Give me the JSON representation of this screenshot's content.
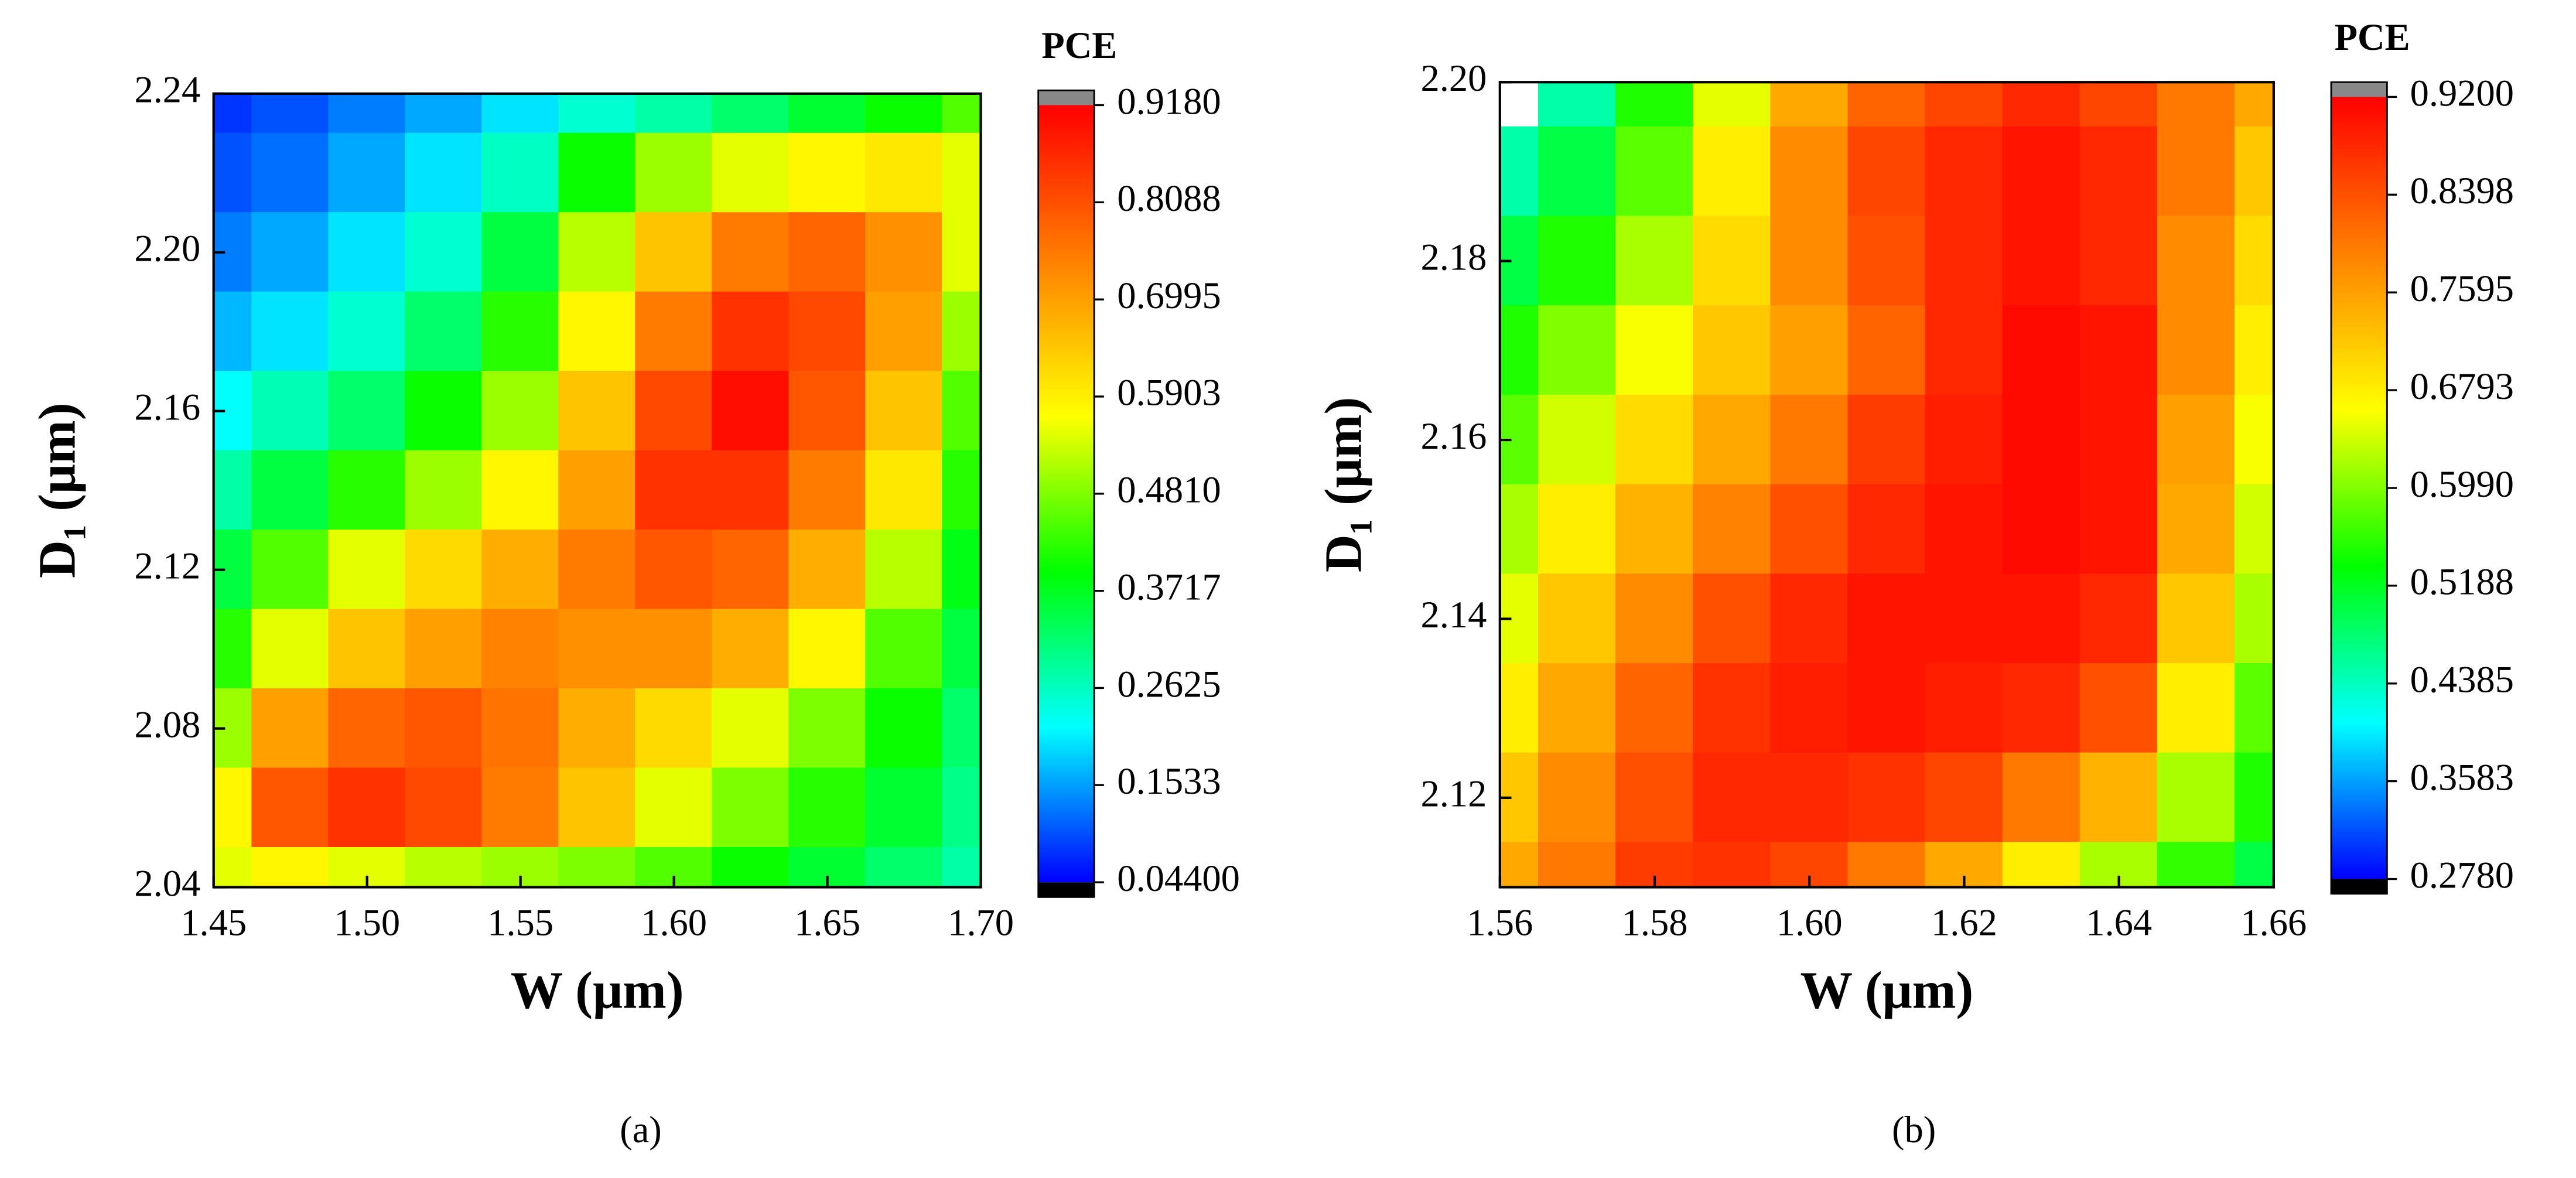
{
  "chart_data": [
    {
      "type": "contour",
      "panel_label": "(a)",
      "x_label": "W (μm)",
      "y_label": "D₁ (μm)",
      "colorbar_title": "PCE",
      "colorscale": [
        "#0000ff",
        "#00ffff",
        "#00ff00",
        "#ffff00",
        "#ff8000",
        "#ff0000"
      ],
      "x": [
        1.45,
        1.475,
        1.5,
        1.525,
        1.55,
        1.575,
        1.6,
        1.625,
        1.65,
        1.675,
        1.7
      ],
      "y": [
        2.24,
        2.22,
        2.2,
        2.18,
        2.16,
        2.14,
        2.12,
        2.1,
        2.08,
        2.06,
        2.04
      ],
      "z": [
        [
          0.08,
          0.1,
          0.13,
          0.16,
          0.2,
          0.25,
          0.28,
          0.32,
          0.36,
          0.4,
          0.45
        ],
        [
          0.1,
          0.12,
          0.16,
          0.2,
          0.26,
          0.4,
          0.5,
          0.55,
          0.58,
          0.6,
          0.55
        ],
        [
          0.13,
          0.16,
          0.2,
          0.25,
          0.35,
          0.52,
          0.65,
          0.75,
          0.78,
          0.72,
          0.55
        ],
        [
          0.17,
          0.2,
          0.25,
          0.32,
          0.42,
          0.58,
          0.75,
          0.85,
          0.82,
          0.7,
          0.5
        ],
        [
          0.22,
          0.27,
          0.32,
          0.4,
          0.5,
          0.65,
          0.82,
          0.9,
          0.8,
          0.65,
          0.45
        ],
        [
          0.28,
          0.35,
          0.42,
          0.5,
          0.58,
          0.7,
          0.85,
          0.85,
          0.75,
          0.6,
          0.42
        ],
        [
          0.35,
          0.45,
          0.55,
          0.62,
          0.68,
          0.75,
          0.8,
          0.78,
          0.68,
          0.52,
          0.38
        ],
        [
          0.42,
          0.55,
          0.65,
          0.7,
          0.74,
          0.72,
          0.72,
          0.68,
          0.58,
          0.45,
          0.35
        ],
        [
          0.5,
          0.7,
          0.78,
          0.8,
          0.76,
          0.68,
          0.62,
          0.55,
          0.48,
          0.4,
          0.32
        ],
        [
          0.58,
          0.8,
          0.85,
          0.82,
          0.75,
          0.65,
          0.55,
          0.48,
          0.42,
          0.36,
          0.3
        ],
        [
          0.55,
          0.58,
          0.55,
          0.52,
          0.5,
          0.48,
          0.45,
          0.4,
          0.36,
          0.32,
          0.28
        ]
      ],
      "xlim": [
        1.45,
        1.7
      ],
      "xticks": [
        1.45,
        {
          "value": 1.5,
          "label": "1.50"
        },
        1.55,
        {
          "value": 1.6,
          "label": "1.60"
        },
        1.65,
        {
          "value": 1.7,
          "label": "1.70"
        }
      ],
      "ylim": [
        2.04,
        2.24
      ],
      "yticks": [
        2.04,
        2.08,
        2.12,
        2.16,
        {
          "value": 2.2,
          "label": "2.20"
        },
        2.24
      ],
      "zlim": [
        0.044,
        0.918
      ],
      "zticks": [
        {
          "value": 0.044,
          "label": "0.04400"
        },
        0.1533,
        0.2625,
        0.3717,
        {
          "value": 0.481,
          "label": "0.4810"
        },
        0.5903,
        0.6995,
        0.8088,
        {
          "value": 0.918,
          "label": "0.9180"
        }
      ]
    },
    {
      "type": "contour",
      "panel_label": "(b)",
      "x_label": "W (μm)",
      "y_label": "D₁ (μm)",
      "colorbar_title": "PCE",
      "colorscale": [
        "#0000ff",
        "#00ffff",
        "#00ff00",
        "#ffff00",
        "#ff8000",
        "#ff0000"
      ],
      "x": [
        1.56,
        1.57,
        1.58,
        1.59,
        1.6,
        1.61,
        1.62,
        1.63,
        1.64,
        1.65,
        1.66
      ],
      "y": [
        2.2,
        2.19,
        2.18,
        2.17,
        2.16,
        2.15,
        2.14,
        2.13,
        2.12,
        2.11
      ],
      "z": [
        [
          null,
          0.45,
          0.55,
          0.65,
          0.75,
          0.82,
          0.85,
          0.88,
          0.85,
          0.8,
          0.75
        ],
        [
          0.45,
          0.5,
          0.58,
          0.68,
          0.78,
          0.85,
          0.88,
          0.9,
          0.88,
          0.8,
          0.72
        ],
        [
          0.5,
          0.55,
          0.62,
          0.7,
          0.78,
          0.84,
          0.88,
          0.9,
          0.88,
          0.78,
          0.7
        ],
        [
          0.55,
          0.6,
          0.66,
          0.72,
          0.76,
          0.82,
          0.88,
          0.91,
          0.9,
          0.78,
          0.68
        ],
        [
          0.58,
          0.64,
          0.7,
          0.75,
          0.8,
          0.86,
          0.89,
          0.91,
          0.9,
          0.76,
          0.66
        ],
        [
          0.62,
          0.68,
          0.74,
          0.79,
          0.84,
          0.88,
          0.9,
          0.91,
          0.9,
          0.75,
          0.64
        ],
        [
          0.65,
          0.72,
          0.78,
          0.84,
          0.88,
          0.9,
          0.9,
          0.9,
          0.88,
          0.72,
          0.62
        ],
        [
          0.68,
          0.75,
          0.82,
          0.87,
          0.89,
          0.9,
          0.89,
          0.88,
          0.84,
          0.68,
          0.58
        ],
        [
          0.72,
          0.78,
          0.84,
          0.88,
          0.88,
          0.87,
          0.85,
          0.8,
          0.74,
          0.62,
          0.55
        ],
        [
          0.75,
          0.8,
          0.86,
          0.87,
          0.85,
          0.8,
          0.75,
          0.68,
          0.62,
          0.56,
          0.5
        ]
      ],
      "xlim": [
        1.56,
        1.66
      ],
      "xticks": [
        1.56,
        1.58,
        {
          "value": 1.6,
          "label": "1.60"
        },
        1.62,
        1.64,
        1.66
      ],
      "ylim": [
        2.11,
        2.2
      ],
      "yticks": [
        2.12,
        2.14,
        2.16,
        2.18,
        {
          "value": 2.2,
          "label": "2.20"
        }
      ],
      "zlim": [
        0.278,
        0.92
      ],
      "zticks": [
        {
          "value": 0.278,
          "label": "0.2780"
        },
        0.3583,
        0.4385,
        0.5188,
        {
          "value": 0.599,
          "label": "0.5990"
        },
        0.6793,
        0.7595,
        0.8398,
        {
          "value": 0.92,
          "label": "0.9200"
        }
      ]
    }
  ]
}
